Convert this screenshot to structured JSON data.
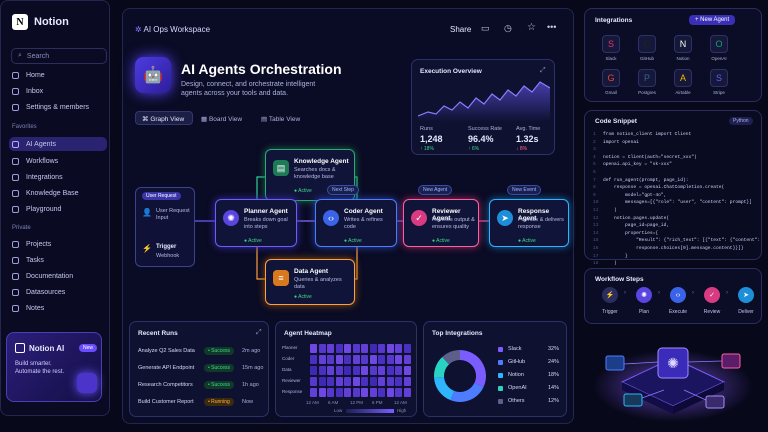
{
  "sidebar": {
    "app": "Notion",
    "search": "Search",
    "top": [
      "Home",
      "Inbox",
      "Settings & members"
    ],
    "favorites_label": "Favorites",
    "favorites": [
      "AI Agents",
      "Workflows",
      "Integrations",
      "Knowledge Base",
      "Playground"
    ],
    "private_label": "Private",
    "private": [
      "Projects",
      "Tasks",
      "Documentation",
      "Datasources",
      "Notes"
    ],
    "card": {
      "title": "Notion AI",
      "badge": "New",
      "text": "Build smarter. Automate the rest."
    }
  },
  "header": {
    "workspace": "AI Ops Workspace",
    "share": "Share"
  },
  "hero": {
    "title": "AI Agents Orchestration",
    "subtitle": "Design, connect, and orchestrate intelligent agents across your tools and data."
  },
  "views": [
    "Graph View",
    "Board View",
    "Table View"
  ],
  "execution": {
    "title": "Execution Overview",
    "runs_label": "Runs",
    "runs": "1,248",
    "runs_delta": "↑ 18%",
    "success_label": "Success Rate",
    "success": "96.4%",
    "success_delta": "↑ 6%",
    "time_label": "Avg. Time",
    "time": "1.32s",
    "time_delta": "↓ 8%"
  },
  "graph": {
    "user_request": "User Request",
    "user_request_sub": "User Request Input",
    "trigger": "Trigger",
    "trigger_sub": "Webhook",
    "nodes": [
      {
        "title": "Knowledge Agent",
        "sub": "Searches docs & knowledge base",
        "status": "Active"
      },
      {
        "title": "Planner Agent",
        "sub": "Breaks down goal into steps",
        "status": "Active"
      },
      {
        "title": "Coder Agent",
        "sub": "Writes & refines code",
        "status": "Active"
      },
      {
        "title": "Reviewer Agent",
        "sub": "Reviews output & ensures quality",
        "status": "Active"
      },
      {
        "title": "Response Agent",
        "sub": "Formats & delivers response",
        "status": "Active"
      },
      {
        "title": "Data Agent",
        "sub": "Queries & analyzes data",
        "status": "Active"
      }
    ],
    "badges": [
      "Next Step",
      "New Agent",
      "New Event"
    ]
  },
  "recent": {
    "title": "Recent Runs",
    "rows": [
      {
        "name": "Analyze Q2 Sales Data",
        "status": "Success",
        "time": "2m ago"
      },
      {
        "name": "Generate API Endpoint",
        "status": "Success",
        "time": "15m ago"
      },
      {
        "name": "Research Competitors",
        "status": "Success",
        "time": "1h ago"
      },
      {
        "name": "Build Customer Report",
        "status": "Running",
        "time": "Now"
      }
    ]
  },
  "heatmap": {
    "title": "Agent Heatmap",
    "rows": [
      "Planner",
      "Coder",
      "Data",
      "Reviewer",
      "Response"
    ],
    "cols": [
      "12 AM",
      "6 AM",
      "12 PM",
      "6 PM",
      "12 AM"
    ],
    "low": "Low",
    "high": "High"
  },
  "top_integrations": {
    "title": "Top Integrations",
    "items": [
      {
        "name": "Slack",
        "pct": "32%",
        "color": "#7b5cff"
      },
      {
        "name": "GitHub",
        "pct": "24%",
        "color": "#4d7cff"
      },
      {
        "name": "Notion",
        "pct": "18%",
        "color": "#2fb4ff"
      },
      {
        "name": "OpenAI",
        "pct": "14%",
        "color": "#28d3c4"
      },
      {
        "name": "Others",
        "pct": "12%",
        "color": "#5b5f8a"
      }
    ]
  },
  "integrations": {
    "title": "Integrations",
    "button": "+ New Agent",
    "apps": [
      "Slack",
      "GitHub",
      "Notion",
      "OpenAI",
      "Gmail",
      "Postgres",
      "Airtable",
      "Stripe"
    ]
  },
  "snippet": {
    "title": "Code Snippet",
    "lang": "Python",
    "lines": [
      "from notion_client import Client",
      "import openai",
      "",
      "notion = Client(auth=\"secret_xxx\")",
      "openai.api_key = \"sk-xxx\"",
      "",
      "def run_agent(prompt, page_id):",
      "    response = openai.ChatCompletion.create(",
      "        model=\"gpt-4o\",",
      "        messages=[{\"role\": \"user\", \"content\": prompt}]",
      "    )",
      "    notion.pages.update(",
      "        page_id=page_id,",
      "        properties={",
      "            \"Result\": {\"rich_text\": [{\"text\": {\"content\":",
      "            response.choices[0].message.content}}]}",
      "        }",
      "    )"
    ]
  },
  "workflow": {
    "title": "Workflow Steps",
    "steps": [
      "Trigger",
      "Plan",
      "Execute",
      "Review",
      "Deliver"
    ]
  }
}
